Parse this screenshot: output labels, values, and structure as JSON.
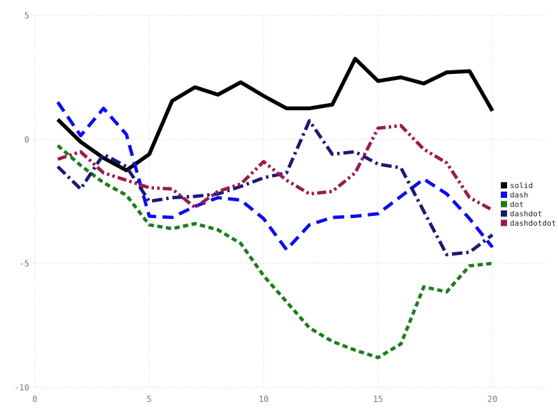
{
  "chart": {
    "background": "#ffffff",
    "grid_color": "#d2d2de",
    "tick_label_color": "#827d73",
    "legend_text_color": "#262626",
    "x_tick_labels": [
      "0",
      "5",
      "10",
      "15",
      "20"
    ],
    "y_tick_labels": [
      "5",
      "0",
      "-5",
      "-10"
    ]
  },
  "chart_data": {
    "type": "line",
    "title": "",
    "xlabel": "",
    "ylabel": "",
    "xlim": [
      0,
      22.4
    ],
    "ylim": [
      -10,
      5
    ],
    "x_ticks": [
      0,
      5,
      10,
      15,
      20
    ],
    "y_ticks": [
      5,
      0,
      -5,
      -10
    ],
    "grid": "dotted",
    "legend_position": "right",
    "x": [
      1,
      2,
      3,
      4,
      5,
      6,
      7,
      8,
      9,
      10,
      11,
      12,
      13,
      14,
      15,
      16,
      17,
      18,
      19,
      20
    ],
    "series": [
      {
        "name": "solid",
        "line_style": "solid",
        "color": "#000000",
        "values": [
          0.8,
          -0.1,
          -0.75,
          -1.25,
          -0.6,
          1.55,
          2.1,
          1.8,
          2.3,
          1.75,
          1.25,
          1.25,
          1.4,
          3.25,
          2.35,
          2.5,
          2.25,
          2.7,
          2.75,
          1.15
        ]
      },
      {
        "name": "dash",
        "line_style": "dash",
        "color": "#0d0df0",
        "values": [
          1.5,
          0.15,
          1.25,
          0.2,
          -3.1,
          -3.15,
          -2.7,
          -2.35,
          -2.45,
          -3.2,
          -4.45,
          -3.45,
          -3.15,
          -3.1,
          -3.0,
          -2.3,
          -1.6,
          -2.2,
          -3.2,
          -4.35
        ]
      },
      {
        "name": "dot",
        "line_style": "dot",
        "color": "#1b7e1b",
        "values": [
          -0.25,
          -1.05,
          -1.75,
          -2.25,
          -3.45,
          -3.6,
          -3.4,
          -3.65,
          -4.2,
          -5.5,
          -6.55,
          -7.6,
          -8.15,
          -8.5,
          -8.8,
          -8.25,
          -5.95,
          -6.15,
          -5.1,
          -5.0
        ]
      },
      {
        "name": "dashdot",
        "line_style": "dashdot",
        "color": "#1a1a75",
        "values": [
          -1.1,
          -2.0,
          -0.6,
          -1.1,
          -2.5,
          -2.35,
          -2.3,
          -2.2,
          -1.9,
          -1.55,
          -1.35,
          0.75,
          -0.6,
          -0.5,
          -1.0,
          -1.15,
          -2.9,
          -4.65,
          -4.55,
          -3.85
        ]
      },
      {
        "name": "dashdotdot",
        "line_style": "dashdotdot",
        "color": "#9b1b4c",
        "values": [
          -0.8,
          -0.5,
          -1.35,
          -1.65,
          -1.95,
          -2.0,
          -2.75,
          -2.1,
          -1.8,
          -0.9,
          -1.65,
          -2.2,
          -2.1,
          -1.35,
          0.45,
          0.55,
          -0.4,
          -0.95,
          -2.35,
          -2.85
        ]
      }
    ]
  },
  "legend": {
    "entries": [
      "solid",
      "dash",
      "dot",
      "dashdot",
      "dashdotdot"
    ]
  }
}
